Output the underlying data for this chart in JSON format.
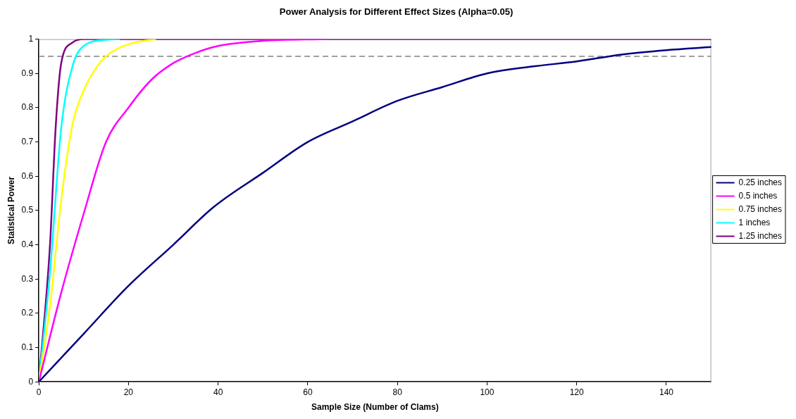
{
  "chart_data": {
    "type": "line",
    "title": "Power Analysis for Different Effect Sizes (Alpha=0.05)",
    "xlabel": "Sample Size (Number of Clams)",
    "ylabel": "Statistical Power",
    "xlim": [
      0,
      150
    ],
    "xticks": [
      0,
      20,
      40,
      60,
      80,
      100,
      120,
      140
    ],
    "ylim": [
      0,
      1
    ],
    "yticks": [
      0,
      0.1,
      0.2,
      0.3,
      0.4,
      0.5,
      0.6,
      0.7,
      0.8,
      0.9,
      1
    ],
    "grid": false,
    "legend": "right",
    "marker": "none",
    "line_style": "solid",
    "ref_lines": [
      {
        "axis": "y",
        "value": 0.95,
        "color": "#808080",
        "line_style": "dashed"
      }
    ],
    "series": [
      {
        "name": "0.25 inches",
        "color": "#000080",
        "x": [
          0,
          10,
          20,
          30,
          39,
          50,
          60,
          70,
          80,
          90,
          100,
          110,
          120,
          130,
          140,
          150
        ],
        "values": [
          0,
          0.14,
          0.28,
          0.4,
          0.51,
          0.61,
          0.7,
          0.76,
          0.82,
          0.86,
          0.9,
          0.92,
          0.935,
          0.955,
          0.968,
          0.977
        ]
      },
      {
        "name": "0.5 inches",
        "color": "#ff00ff",
        "x": [
          0,
          5,
          10,
          15,
          20,
          25,
          30,
          35,
          40,
          50,
          64
        ],
        "values": [
          0,
          0.26,
          0.49,
          0.7,
          0.8,
          0.88,
          0.93,
          0.96,
          0.98,
          0.995,
          1
        ]
      },
      {
        "name": "0.75 inches",
        "color": "#ffff00",
        "x": [
          0,
          2.5,
          5,
          7.5,
          10,
          12.5,
          15,
          20,
          26
        ],
        "values": [
          0,
          0.22,
          0.53,
          0.75,
          0.85,
          0.91,
          0.95,
          0.985,
          1
        ]
      },
      {
        "name": "1 inches",
        "color": "#00ffff",
        "x": [
          0,
          2.5,
          5,
          7.5,
          10,
          15,
          18
        ],
        "values": [
          0,
          0.32,
          0.74,
          0.92,
          0.98,
          0.998,
          1
        ]
      },
      {
        "name": "1.25 inches",
        "color": "#800080",
        "x": [
          0,
          2.5,
          3.75,
          5,
          7.5,
          10,
          150
        ],
        "values": [
          0,
          0.4,
          0.74,
          0.93,
          0.99,
          1,
          1
        ]
      }
    ]
  }
}
